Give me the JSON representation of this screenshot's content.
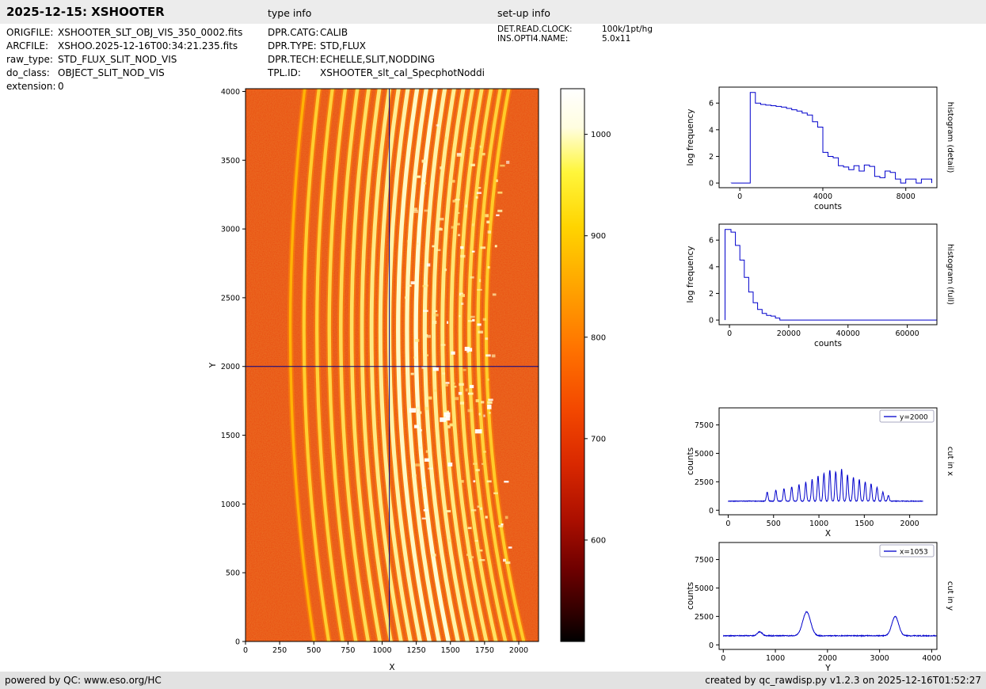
{
  "header": {
    "title": "2025-12-15: XSHOOTER",
    "type_info_label": "type info",
    "setup_info_label": "set-up info"
  },
  "file_info": {
    "rows": [
      {
        "label": "ORIGFILE:",
        "value": "XSHOOTER_SLT_OBJ_VIS_350_0002.fits"
      },
      {
        "label": "ARCFILE:",
        "value": "XSHOO.2025-12-16T00:34:21.235.fits"
      },
      {
        "label": "raw_type:",
        "value": "STD_FLUX_SLIT_NOD_VIS"
      },
      {
        "label": "do_class:",
        "value": "OBJECT_SLIT_NOD_VIS"
      },
      {
        "label": "extension:",
        "value": "0"
      }
    ]
  },
  "type_info": {
    "rows": [
      {
        "label": "DPR.CATG:",
        "value": "CALIB"
      },
      {
        "label": "DPR.TYPE:",
        "value": "STD,FLUX"
      },
      {
        "label": "DPR.TECH:",
        "value": "ECHELLE,SLIT,NODDING"
      },
      {
        "label": "TPL.ID:",
        "value": "XSHOOTER_slt_cal_SpecphotNoddi"
      }
    ]
  },
  "setup_info": {
    "rows": [
      {
        "label": "DET.READ.CLOCK:",
        "value": "100k/1pt/hg"
      },
      {
        "label": "INS.OPTI4.NAME:",
        "value": "5.0x11"
      }
    ]
  },
  "footer": {
    "left": "powered by QC: www.eso.org/HC",
    "right": "created by qc_rawdisp.py v1.2.3 on 2025-12-16T01:52:27"
  },
  "chart_data": [
    {
      "id": "raw_frame",
      "type": "heatmap",
      "title": "",
      "xlabel": "X",
      "ylabel": "Y",
      "xlim": [
        0,
        2145
      ],
      "ylim": [
        0,
        4020
      ],
      "xticks": [
        0,
        250,
        500,
        750,
        1000,
        1250,
        1500,
        1750,
        2000
      ],
      "yticks": [
        0,
        500,
        1000,
        1500,
        2000,
        2500,
        3000,
        3500,
        4000
      ],
      "background_color": "#e8490e",
      "crosshair": {
        "x": 1053,
        "y": 2000,
        "color": "#00008b"
      },
      "orders": [
        [
          330,
          0.15
        ],
        [
          430,
          0.45
        ],
        [
          525,
          0.5
        ],
        [
          615,
          0.55
        ],
        [
          700,
          0.6
        ],
        [
          780,
          0.65
        ],
        [
          855,
          0.7
        ],
        [
          925,
          0.75
        ],
        [
          990,
          0.8
        ],
        [
          1055,
          0.85
        ],
        [
          1120,
          0.92
        ],
        [
          1185,
          0.9
        ],
        [
          1250,
          0.95
        ],
        [
          1315,
          0.85
        ],
        [
          1380,
          0.8
        ],
        [
          1445,
          0.75
        ],
        [
          1510,
          0.7
        ],
        [
          1575,
          0.65
        ],
        [
          1640,
          0.58
        ],
        [
          1705,
          0.5
        ],
        [
          1765,
          0.42
        ]
      ],
      "speckle_xmin": 1150
    },
    {
      "id": "colorbar",
      "type": "colorbar",
      "colormap": "hot",
      "vmin": 500,
      "vmax": 1045,
      "ticks": [
        600,
        700,
        800,
        900,
        1000
      ]
    },
    {
      "id": "histogram_detail",
      "type": "line",
      "style": "step",
      "xlabel": "counts",
      "ylabel": "log frequency",
      "right_label": "histogram (detail)",
      "color": "#0000cc",
      "xlim": [
        -1000,
        9500
      ],
      "ylim": [
        -0.35,
        7.2
      ],
      "xticks": [
        0,
        4000,
        8000
      ],
      "yticks": [
        0,
        2,
        4,
        6
      ],
      "bin_edges": [
        -400,
        500,
        750,
        1000,
        1250,
        1500,
        1750,
        2000,
        2250,
        2500,
        2750,
        3000,
        3250,
        3500,
        3750,
        4000,
        4250,
        4500,
        4750,
        5000,
        5250,
        5500,
        5750,
        6000,
        6250,
        6500,
        6750,
        7000,
        7250,
        7500,
        7750,
        8000,
        8250,
        8500,
        8750,
        9000,
        9250
      ],
      "values": [
        0,
        6.8,
        6.0,
        5.9,
        5.85,
        5.8,
        5.75,
        5.7,
        5.6,
        5.5,
        5.4,
        5.25,
        5.1,
        4.6,
        4.2,
        2.3,
        2.0,
        1.9,
        1.3,
        1.2,
        1.0,
        1.3,
        0.9,
        1.35,
        1.25,
        0.5,
        0.4,
        0.9,
        0.8,
        0.3,
        0,
        0.3,
        0.3,
        0,
        0.3,
        0.3
      ]
    },
    {
      "id": "histogram_full",
      "type": "line",
      "style": "step",
      "xlabel": "counts",
      "ylabel": "log frequency",
      "right_label": "histogram (full)",
      "color": "#0000cc",
      "xlim": [
        -3500,
        70000
      ],
      "ylim": [
        -0.35,
        7.2
      ],
      "xticks": [
        0,
        20000,
        40000,
        60000
      ],
      "yticks": [
        0,
        2,
        4,
        6
      ],
      "bin_edges": [
        -1500,
        500,
        2000,
        3500,
        5000,
        6500,
        8000,
        9500,
        11000,
        12500,
        14000,
        15500,
        17000,
        70000
      ],
      "values": [
        6.8,
        6.6,
        5.6,
        4.5,
        3.2,
        2.1,
        1.3,
        0.8,
        0.5,
        0.35,
        0.3,
        0.15,
        0
      ]
    },
    {
      "id": "cut_in_x",
      "type": "line",
      "style": "profile",
      "legend": "y=2000",
      "xlabel": "X",
      "ylabel": "counts",
      "right_label": "cut in x",
      "color": "#0000cc",
      "xlim": [
        -100,
        2300
      ],
      "ylim": [
        -400,
        9000
      ],
      "xticks": [
        0,
        500,
        1000,
        1500,
        2000
      ],
      "yticks": [
        0,
        2500,
        5000,
        7500
      ],
      "xrange_data": [
        0,
        2148
      ],
      "baseline": 800,
      "noise": 25,
      "peaks": [
        [
          430,
          800,
          9
        ],
        [
          525,
          950,
          9
        ],
        [
          615,
          1100,
          9
        ],
        [
          700,
          1250,
          9
        ],
        [
          780,
          1450,
          9
        ],
        [
          855,
          1650,
          9
        ],
        [
          925,
          1900,
          9
        ],
        [
          990,
          2200,
          9
        ],
        [
          1055,
          2450,
          9
        ],
        [
          1120,
          2700,
          9
        ],
        [
          1185,
          2600,
          9
        ],
        [
          1250,
          2800,
          9
        ],
        [
          1315,
          2300,
          9
        ],
        [
          1380,
          2100,
          9
        ],
        [
          1445,
          1900,
          9
        ],
        [
          1510,
          1700,
          9
        ],
        [
          1575,
          1500,
          9
        ],
        [
          1640,
          1200,
          9
        ],
        [
          1705,
          800,
          9
        ],
        [
          1765,
          500,
          9
        ]
      ]
    },
    {
      "id": "cut_in_y",
      "type": "line",
      "style": "profile",
      "legend": "x=1053",
      "xlabel": "Y",
      "ylabel": "counts",
      "right_label": "cut in y",
      "color": "#0000cc",
      "xlim": [
        -80,
        4100
      ],
      "ylim": [
        -400,
        9000
      ],
      "xticks": [
        0,
        1000,
        2000,
        3000,
        4000
      ],
      "yticks": [
        0,
        2500,
        5000,
        7500
      ],
      "xrange_data": [
        0,
        4096
      ],
      "baseline": 800,
      "noise": 35,
      "peaks": [
        [
          700,
          350,
          45
        ],
        [
          1600,
          2100,
          75
        ],
        [
          3300,
          1700,
          65
        ]
      ]
    }
  ]
}
